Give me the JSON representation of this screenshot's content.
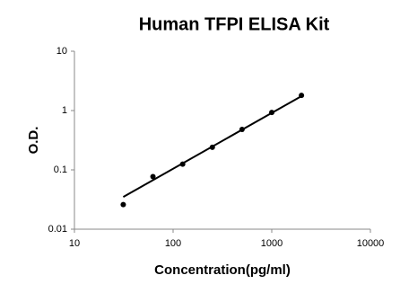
{
  "chart_data": {
    "type": "scatter",
    "title": "Human TFPI ELISA Kit",
    "x_label": "Concentration(pg/ml)",
    "y_label": "O.D.",
    "x": [
      31.25,
      62.5,
      125,
      250,
      500,
      1000,
      2000
    ],
    "values": [
      0.026,
      0.077,
      0.125,
      0.24,
      0.48,
      0.93,
      1.8
    ],
    "color": "#000000",
    "trendline": {
      "x": [
        31.25,
        2000
      ],
      "values": [
        0.035,
        1.75
      ]
    },
    "xlim": [
      10,
      10000
    ],
    "xticks": [
      10,
      100,
      1000,
      10000
    ],
    "ylim": [
      0.01,
      10
    ],
    "yticks": [
      0.01,
      0.1,
      1,
      10
    ],
    "xscale": "log",
    "yscale": "log",
    "grid": false
  }
}
